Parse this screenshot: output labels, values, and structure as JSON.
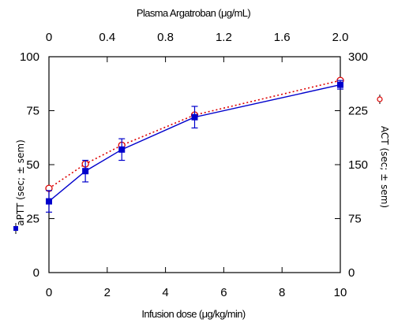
{
  "chart_data": {
    "type": "line",
    "title": "",
    "xlabel": "Infusion dose (μg/kg/min)",
    "x2label": "Plasma Argatroban (μg/mL)",
    "ylabel": "aPTT (sec; ± sem)",
    "y2label": "ACT (sec; ± sem)",
    "xlim": [
      0,
      10
    ],
    "x2lim": [
      0,
      2.0
    ],
    "ylim": [
      0,
      100
    ],
    "y2lim": [
      0,
      300
    ],
    "x_ticks": [
      "0",
      "2",
      "4",
      "6",
      "8",
      "10"
    ],
    "x2_ticks": [
      "0",
      "0.4",
      "0.8",
      "1.2",
      "1.6",
      "2.0"
    ],
    "y_ticks": [
      "0",
      "25",
      "50",
      "75",
      "100"
    ],
    "y2_ticks": [
      "0",
      "75",
      "150",
      "225",
      "300"
    ],
    "grid": false,
    "series": [
      {
        "axis": "left",
        "color": "#0000cc",
        "line": "solid",
        "marker": "filled-square",
        "x": [
          0,
          1.25,
          2.5,
          5,
          10
        ],
        "y": [
          33,
          47,
          57,
          72,
          87
        ],
        "err": [
          5,
          5,
          5,
          5,
          2
        ]
      },
      {
        "axis": "right",
        "color": "#dd0000",
        "line": "dotted",
        "marker": "open-circle",
        "x": [
          0,
          1.25,
          2.5,
          5,
          10
        ],
        "y": [
          117,
          151,
          177,
          219,
          267
        ],
        "err": [
          0,
          0,
          0,
          0,
          0
        ]
      }
    ]
  }
}
